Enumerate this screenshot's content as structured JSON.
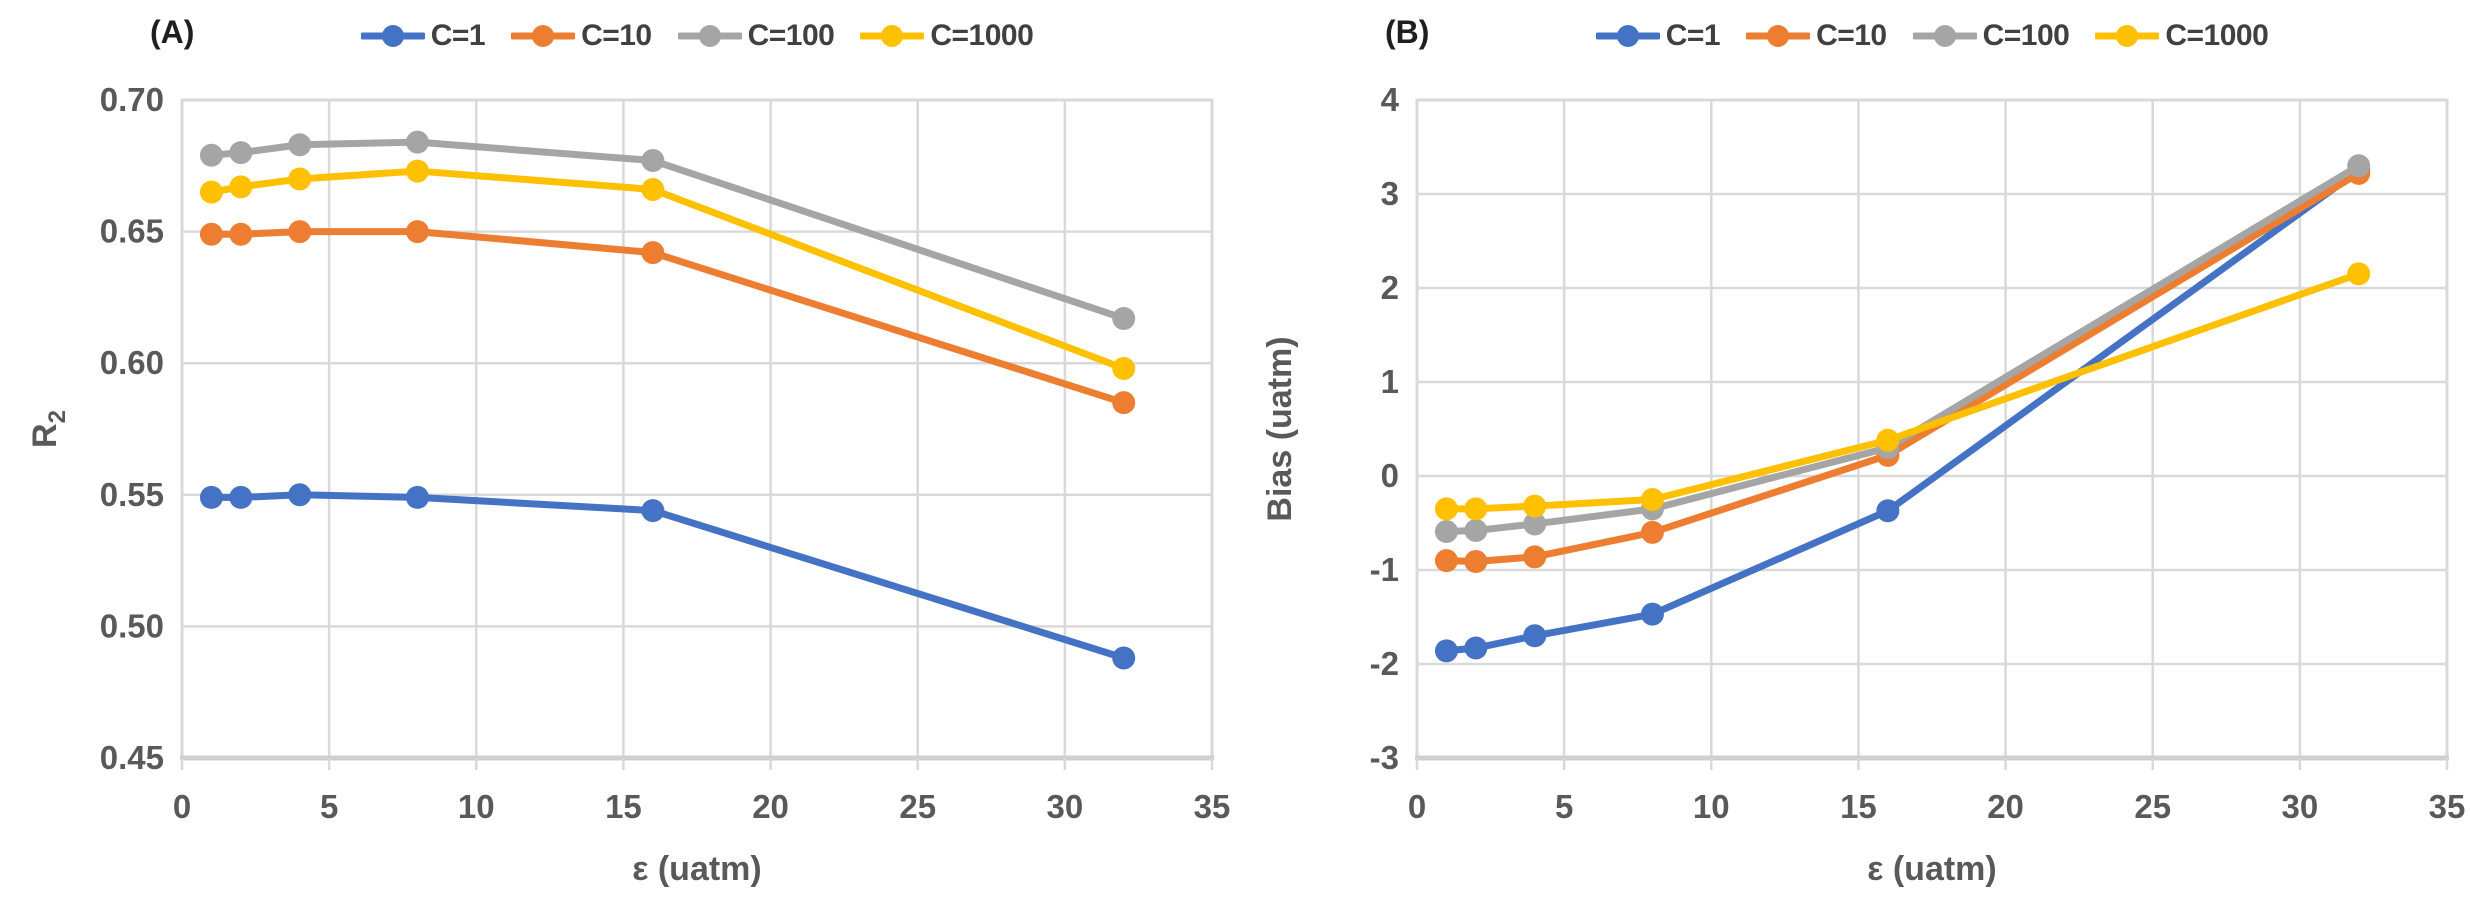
{
  "page": {
    "background": "#FFFFFF"
  },
  "colors": {
    "gridline": "#D9D9D9",
    "plot_border": "#D9D9D9",
    "axis_line": "#D0CECE",
    "axis_text": "#595959",
    "panel_label_text": "#1f1f1f",
    "legend_text": "#404040"
  },
  "chart_data": [
    {
      "id": "A",
      "type": "line",
      "panel_label": "(A)",
      "xlabel": "ε (uatm)",
      "ylabel": {
        "text": "R",
        "sub": "2"
      },
      "xlim": [
        0,
        35
      ],
      "ylim": [
        0.45,
        0.7
      ],
      "xticks": [
        0,
        5,
        10,
        15,
        20,
        25,
        30,
        35
      ],
      "yticks": [
        0.45,
        0.5,
        0.55,
        0.6,
        0.65,
        0.7
      ],
      "ytick_decimals": 2,
      "grid": true,
      "legend_position": "top-center",
      "x": [
        1,
        2,
        4,
        8,
        16,
        32
      ],
      "series": [
        {
          "name": "C=1",
          "color": "#4472C4",
          "values": [
            0.549,
            0.549,
            0.55,
            0.549,
            0.544,
            0.488
          ]
        },
        {
          "name": "C=10",
          "color": "#ED7D31",
          "values": [
            0.649,
            0.649,
            0.65,
            0.65,
            0.642,
            0.585
          ]
        },
        {
          "name": "C=100",
          "color": "#A5A5A5",
          "values": [
            0.679,
            0.68,
            0.683,
            0.684,
            0.677,
            0.617
          ]
        },
        {
          "name": "C=1000",
          "color": "#FFC000",
          "values": [
            0.665,
            0.667,
            0.67,
            0.673,
            0.666,
            0.598
          ]
        }
      ]
    },
    {
      "id": "B",
      "type": "line",
      "panel_label": "(B)",
      "xlabel": "ε (uatm)",
      "ylabel": {
        "text": "Bias (uatm)",
        "sub": ""
      },
      "xlim": [
        0,
        35
      ],
      "ylim": [
        -3,
        4
      ],
      "xticks": [
        0,
        5,
        10,
        15,
        20,
        25,
        30,
        35
      ],
      "yticks": [
        -3,
        -2,
        -1,
        0,
        1,
        2,
        3,
        4
      ],
      "ytick_decimals": 0,
      "grid": true,
      "legend_position": "top-center",
      "x": [
        1,
        2,
        4,
        8,
        16,
        32
      ],
      "series": [
        {
          "name": "C=1",
          "color": "#4472C4",
          "values": [
            -1.86,
            -1.83,
            -1.7,
            -1.47,
            -0.37,
            3.25
          ]
        },
        {
          "name": "C=10",
          "color": "#ED7D31",
          "values": [
            -0.9,
            -0.91,
            -0.86,
            -0.6,
            0.22,
            3.22
          ]
        },
        {
          "name": "C=100",
          "color": "#A5A5A5",
          "values": [
            -0.59,
            -0.58,
            -0.51,
            -0.35,
            0.3,
            3.3
          ]
        },
        {
          "name": "C=1000",
          "color": "#FFC000",
          "values": [
            -0.35,
            -0.35,
            -0.32,
            -0.25,
            0.38,
            2.15
          ]
        }
      ]
    }
  ]
}
